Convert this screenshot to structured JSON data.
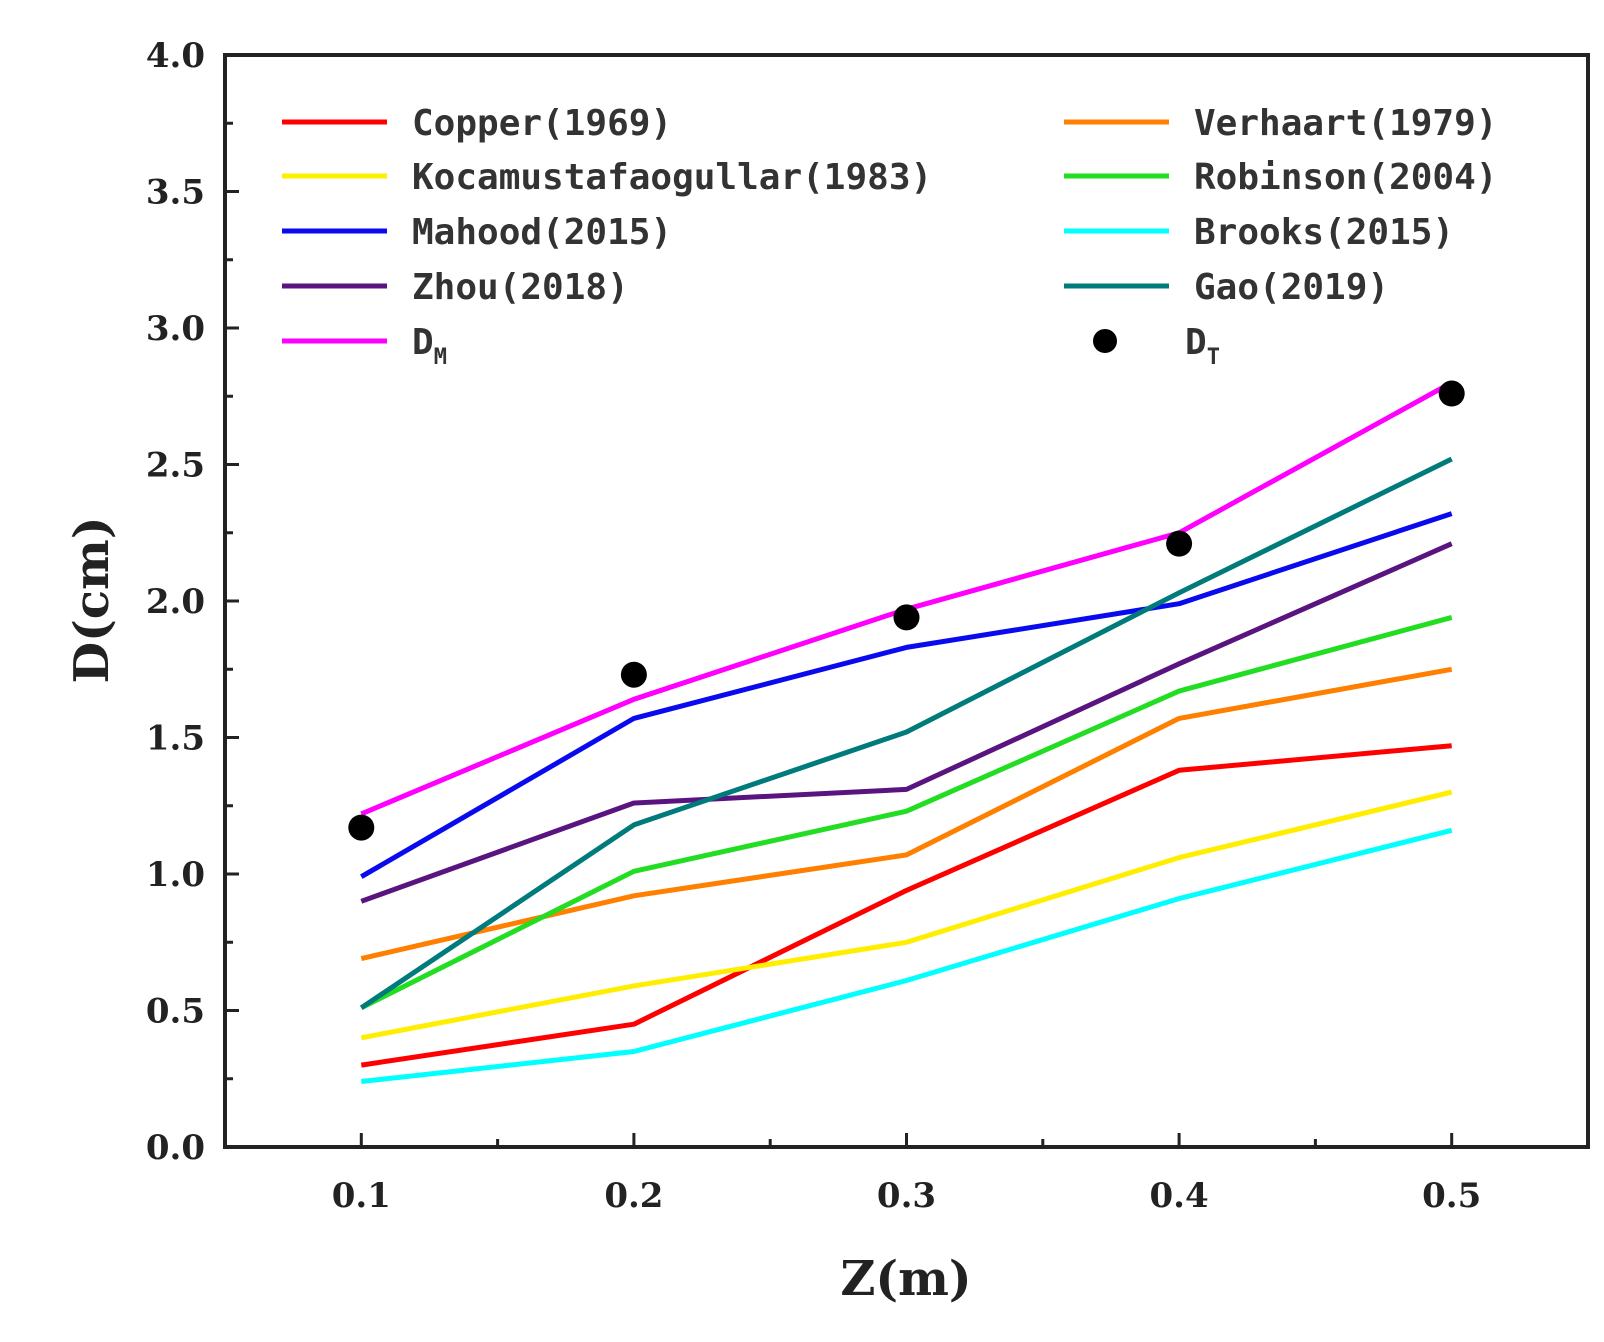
{
  "chart_data": {
    "type": "line",
    "xlabel": "Z(m)",
    "ylabel": "D(cm)",
    "xlim": [
      0.05,
      0.55
    ],
    "ylim": [
      0.0,
      4.0
    ],
    "x_ticks": [
      "0.1",
      "0.2",
      "0.3",
      "0.4",
      "0.5"
    ],
    "y_ticks": [
      "0.0",
      "0.5",
      "1.0",
      "1.5",
      "2.0",
      "2.5",
      "3.0",
      "3.5",
      "4.0"
    ],
    "x": [
      0.1,
      0.2,
      0.3,
      0.4,
      0.5
    ],
    "grid": false,
    "legend_position": "top",
    "series": [
      {
        "name": "Copper(1969)",
        "color": "#ff0000",
        "values": [
          0.3,
          0.45,
          0.94,
          1.38,
          1.47
        ]
      },
      {
        "name": "Verhaart(1979)",
        "color": "#ff7f00",
        "values": [
          0.69,
          0.92,
          1.07,
          1.57,
          1.75
        ]
      },
      {
        "name": "Kocamustafaogullar(1983)",
        "color": "#ffee00",
        "values": [
          0.4,
          0.59,
          0.75,
          1.06,
          1.3
        ]
      },
      {
        "name": "Robinson(2004)",
        "color": "#22dd22",
        "values": [
          0.51,
          1.01,
          1.23,
          1.67,
          1.94
        ]
      },
      {
        "name": "Mahood(2015)",
        "color": "#0a0aee",
        "values": [
          0.99,
          1.57,
          1.83,
          1.99,
          2.32
        ]
      },
      {
        "name": "Brooks(2015)",
        "color": "#00ffff",
        "values": [
          0.24,
          0.35,
          0.61,
          0.91,
          1.16
        ]
      },
      {
        "name": "Zhou(2018)",
        "color": "#5a1480",
        "values": [
          0.9,
          1.26,
          1.31,
          1.77,
          2.21
        ]
      },
      {
        "name": "Gao(2019)",
        "color": "#007b7b",
        "values": [
          0.51,
          1.18,
          1.52,
          2.03,
          2.52
        ]
      },
      {
        "name": "D",
        "subscript": "M",
        "color": "#ff00ff",
        "values": [
          1.22,
          1.64,
          1.97,
          2.25,
          2.8
        ]
      }
    ],
    "scatter": {
      "name": "D",
      "subscript": "T",
      "color": "#000000",
      "values": [
        1.17,
        1.73,
        1.94,
        2.21,
        2.76
      ]
    }
  }
}
